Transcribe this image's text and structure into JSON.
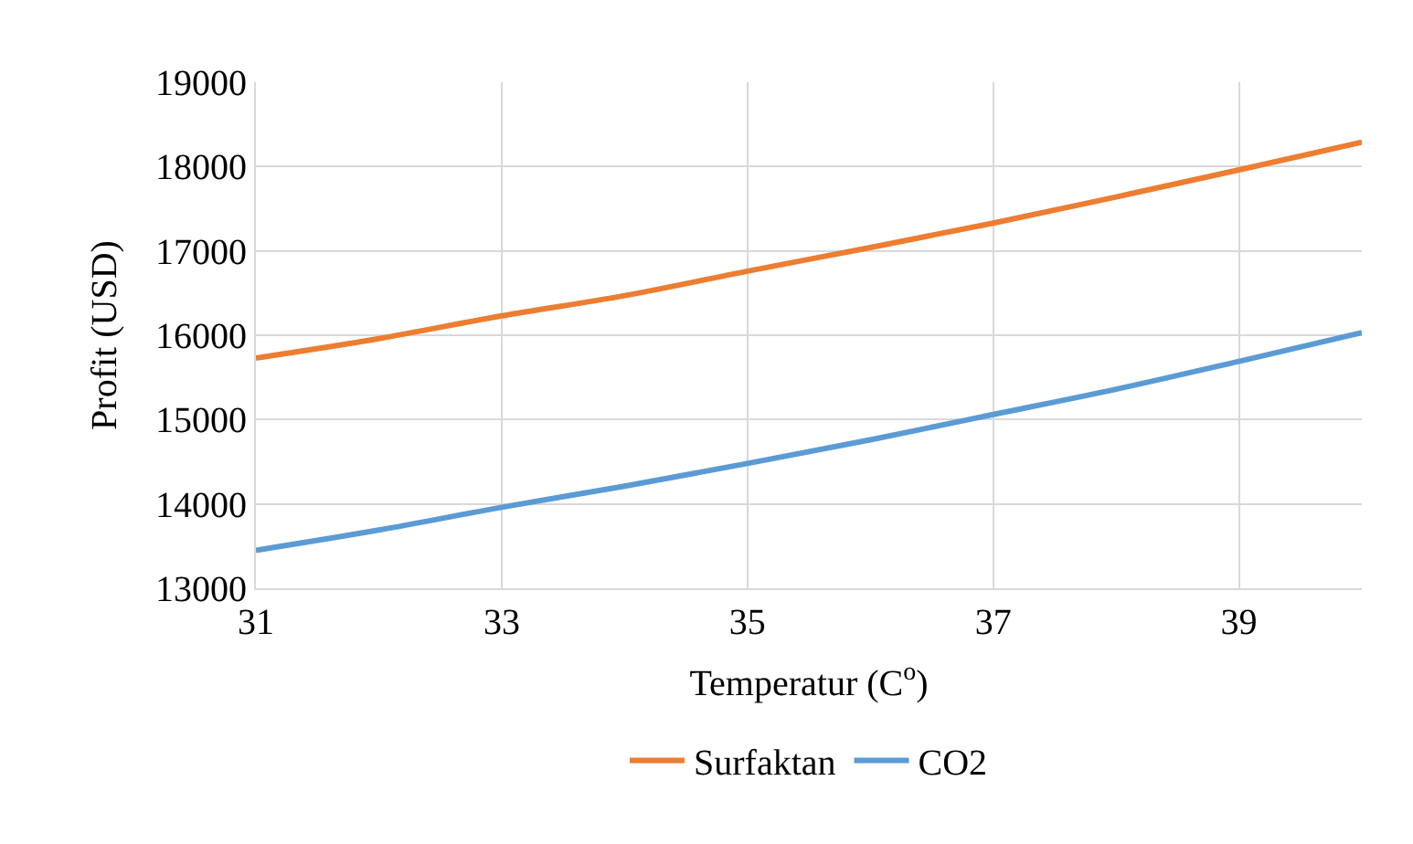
{
  "chart_data": {
    "type": "line",
    "xlabel": "Temperatur (C$^{o}$)",
    "ylabel": "Profit (USD)",
    "x": [
      31,
      32,
      33,
      34,
      35,
      36,
      37,
      38,
      39,
      40
    ],
    "series": [
      {
        "name": "Surfaktan",
        "color": "#ed7d31",
        "values": [
          15730,
          15960,
          16230,
          16470,
          16760,
          17040,
          17330,
          17640,
          17960,
          18290
        ]
      },
      {
        "name": "CO2",
        "color": "#5b9bd5",
        "values": [
          13450,
          13690,
          13960,
          14210,
          14480,
          14760,
          15060,
          15360,
          15690,
          16030
        ]
      }
    ],
    "xlim": [
      31,
      40
    ],
    "xticks": [
      31,
      33,
      35,
      37,
      39
    ],
    "ylim": [
      13000,
      19000
    ],
    "yticks": [
      13000,
      14000,
      15000,
      16000,
      17000,
      18000,
      19000
    ],
    "grid": true,
    "legend": "bottom",
    "marker": "none",
    "line_style": "solid"
  }
}
